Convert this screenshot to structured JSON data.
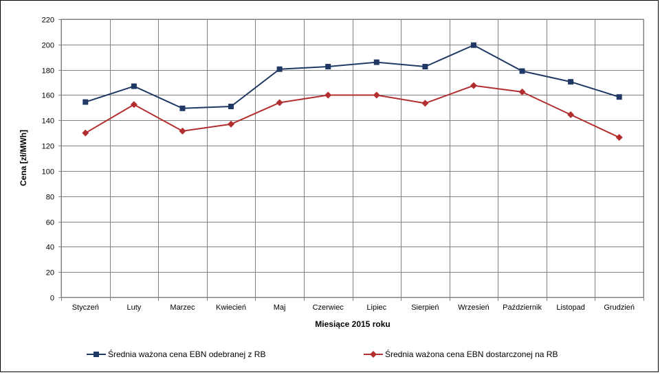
{
  "chart_data": {
    "type": "line",
    "xlabel": "Miesiące 2015  roku",
    "ylabel": "Cena [zł/MWh]",
    "ylim": [
      0,
      220
    ],
    "yticks": [
      0,
      20,
      40,
      60,
      80,
      100,
      120,
      140,
      160,
      180,
      200,
      220
    ],
    "grid": true,
    "legend_position": "bottom",
    "categories": [
      "Styczeń",
      "Luty",
      "Marzec",
      "Kwiecień",
      "Maj",
      "Czerwiec",
      "Lipiec",
      "Sierpień",
      "Wrzesień",
      "Październik",
      "Listopad",
      "Grudzień"
    ],
    "series": [
      {
        "name": "Średnia ważona cena EBN odebranej z RB",
        "color": "#1f3864",
        "marker": "square",
        "values": [
          154.5,
          167,
          149.5,
          151,
          180.5,
          182.5,
          186,
          182.5,
          199.5,
          179,
          170.5,
          158.5
        ]
      },
      {
        "name": "Średnia ważona cena EBN dostarczonej na RB",
        "color": "#b22d2d",
        "marker": "diamond",
        "values": [
          130,
          152.5,
          131.5,
          137,
          154,
          160,
          160,
          153.5,
          167.5,
          162.5,
          144.5,
          126.5
        ]
      }
    ]
  }
}
